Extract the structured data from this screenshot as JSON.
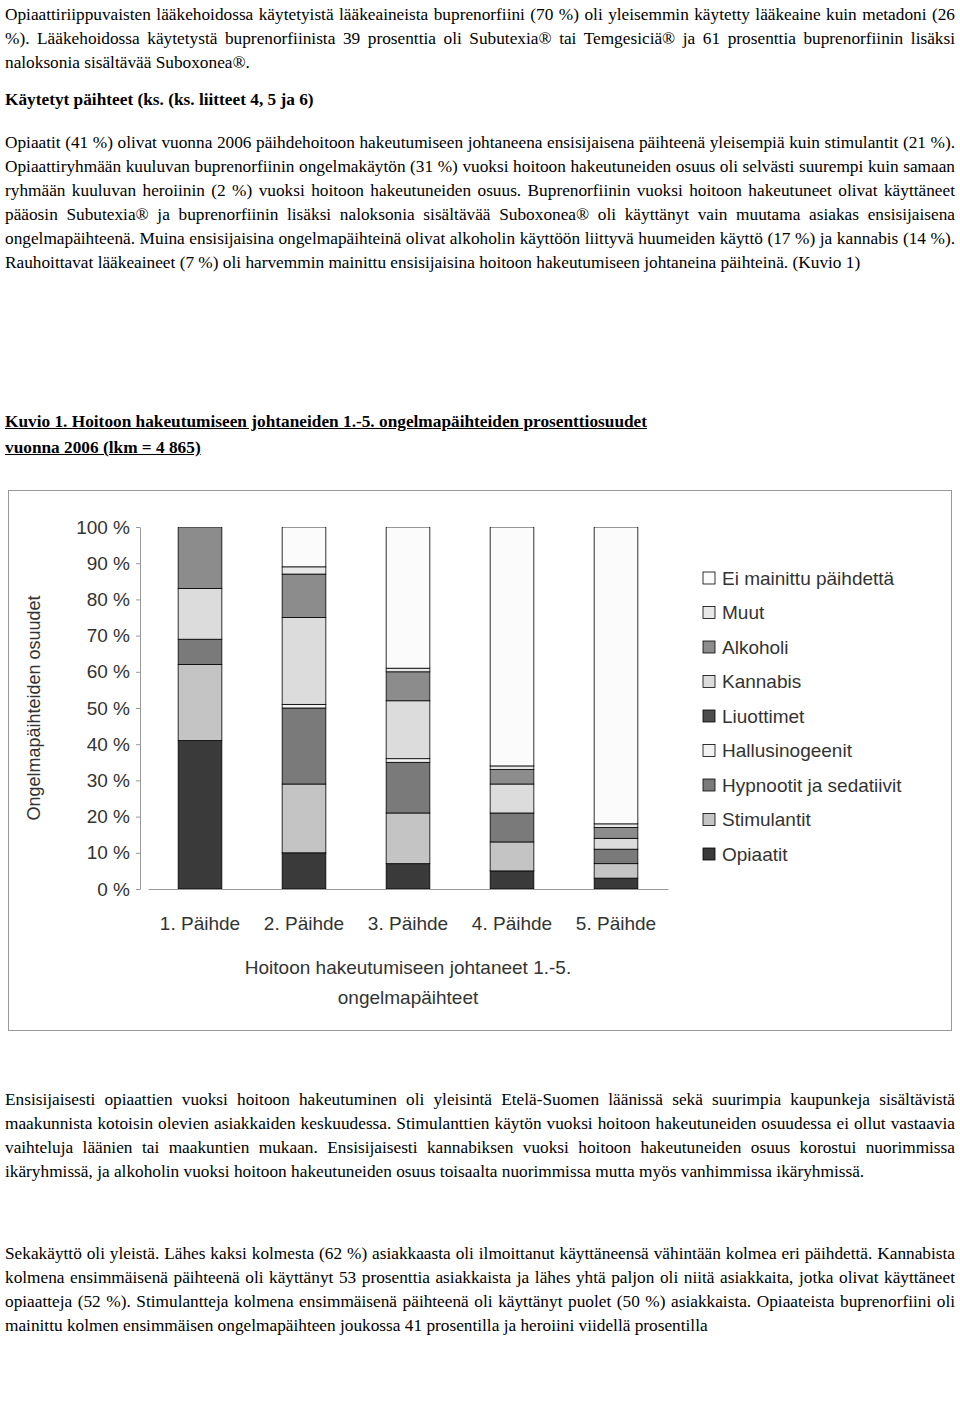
{
  "paragraphs_top": [
    "Opiaattiriippuvaisten lääkehoidossa käytetyistä lääkeaineista buprenorfiini (70 %) oli yleisemmin käytetty lääkeaine kuin metadoni (26 %). Lääkehoidossa käytetystä buprenorfiinista 39 prosenttia oli Subutexia® tai Temgesiciä® ja 61 prosenttia buprenorfiinin lisäksi naloksonia sisältävää Suboxonea®."
  ],
  "heading": "Käytetyt päihteet (ks. (ks. liitteet 4, 5 ja 6)",
  "paragraphs_middle": [
    "Opiaatit (41 %) olivat vuonna 2006 päihdehoitoon hakeutumiseen johtaneena ensisijaisena päihteenä yleisempiä kuin stimulantit (21 %). Opiaattiryhmään kuuluvan buprenorfiinin ongelmakäytön (31 %) vuoksi hoitoon hakeutuneiden osuus oli selvästi suurempi kuin samaan ryhmään kuuluvan heroiinin (2 %) vuoksi hoitoon hakeutuneiden osuus. Buprenorfiinin vuoksi hoitoon hakeutuneet olivat käyttäneet pääosin Subutexia® ja buprenorfiinin lisäksi naloksonia sisältävää Suboxonea® oli käyttänyt vain muutama asiakas ensisijaisena ongelmapäihteenä. Muina ensisijaisina ongelmapäihteinä olivat alkoholin käyttöön liittyvä huumeiden käyttö (17 %) ja kannabis (14 %). Rauhoittavat lääkeaineet (7 %) oli harvemmin mainittu ensisijaisina hoitoon hakeutumiseen johtaneina päihteinä. (Kuvio 1)"
  ],
  "figure_caption": [
    "Kuvio 1. Hoitoon hakeutumiseen johtaneiden 1.-5. ongelmapäihteiden prosenttiosuudet",
    "vuonna 2006 (lkm = 4 865)"
  ],
  "chart_data": {
    "type": "bar",
    "stacked": true,
    "legend": "right",
    "x_label": "Hoitoon hakeutumiseen johtaneet 1.-5. ongelmapäihteet",
    "y_label": "Ongelmapäihteiden osuudet",
    "categories": [
      "1. Päihde",
      "2. Päihde",
      "3. Päihde",
      "4. Päihde",
      "5. Päihde"
    ],
    "ylim": [
      0,
      100
    ],
    "yticks": [
      {
        "value": 0,
        "label": "0 %"
      },
      {
        "value": 10,
        "label": "10 %"
      },
      {
        "value": 20,
        "label": "20 %"
      },
      {
        "value": 30,
        "label": "30 %"
      },
      {
        "value": 40,
        "label": "40 %"
      },
      {
        "value": 50,
        "label": "50 %"
      },
      {
        "value": 60,
        "label": "60 %"
      },
      {
        "value": 70,
        "label": "70 %"
      },
      {
        "value": 80,
        "label": "80 %"
      },
      {
        "value": 90,
        "label": "90 %"
      },
      {
        "value": 100,
        "label": "100 %"
      }
    ],
    "series": [
      {
        "name": "Opiaatit",
        "color": "#3a3a3a",
        "values": [
          41,
          10,
          7,
          5,
          3
        ]
      },
      {
        "name": "Stimulantit",
        "color": "#c4c4c4",
        "values": [
          21,
          19,
          14,
          8,
          4
        ]
      },
      {
        "name": "Hypnootit ja sedatiivit",
        "color": "#7a7a7a",
        "values": [
          7,
          21,
          14,
          8,
          4
        ]
      },
      {
        "name": "Hallusinogeenit",
        "color": "#f2f2f2",
        "values": [
          0,
          1,
          1,
          0,
          0
        ]
      },
      {
        "name": "Liuottimet",
        "color": "#4d4d4d",
        "values": [
          0,
          0,
          0,
          0,
          0
        ]
      },
      {
        "name": "Kannabis",
        "color": "#dcdcdc",
        "values": [
          14,
          24,
          16,
          8,
          3
        ]
      },
      {
        "name": "Alkoholi",
        "color": "#8c8c8c",
        "values": [
          17,
          12,
          8,
          4,
          3
        ]
      },
      {
        "name": "Muut",
        "color": "#e8e8e8",
        "values": [
          0,
          2,
          1,
          1,
          1
        ]
      },
      {
        "name": "Ei mainittu päihdettä",
        "color": "#fbfbfb",
        "values": [
          0,
          11,
          39,
          66,
          82
        ]
      }
    ]
  },
  "paragraphs_bottom": [
    "Ensisijaisesti opiaattien vuoksi hoitoon hakeutuminen oli yleisintä Etelä-Suomen läänissä sekä suurimpia kaupunkeja sisältävistä maakunnista kotoisin olevien asiakkaiden keskuudessa. Stimulanttien käytön vuoksi hoitoon hakeutuneiden osuudessa ei ollut vastaavia vaihteluja läänien tai maakuntien mukaan. Ensisijaisesti kannabiksen vuoksi hoitoon hakeutuneiden osuus korostui nuorimmissa ikäryhmissä, ja alkoholin vuoksi hoitoon hakeutuneiden osuus toisaalta nuorimmissa mutta myös vanhimmissa ikäryhmissä.",
    "Sekakäyttö oli yleistä. Lähes kaksi kolmesta (62 %) asiakkaasta oli ilmoittanut käyttäneensä vähintään kolmea eri päihdettä. Kannabista kolmena ensimmäisenä päihteenä oli käyttänyt 53 prosenttia asiakkaista ja lähes yhtä paljon oli niitä asiakkaita, jotka olivat käyttäneet opiaatteja (52 %). Stimulantteja kolmena ensimmäisenä päihteenä oli käyttänyt puolet (50 %) asiakkaista. Opiaateista buprenorfiini oli mainittu kolmen ensimmäisen ongelmapäihteen joukossa 41 prosentilla ja heroiini viidellä prosentilla"
  ]
}
